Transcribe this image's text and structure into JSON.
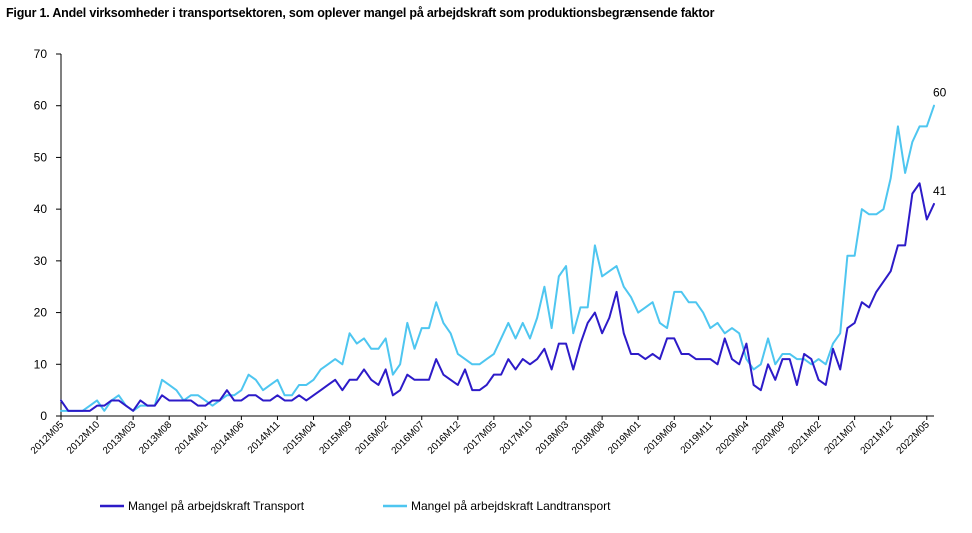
{
  "chart_data": {
    "type": "line",
    "title": "Figur 1. Andel virksomheder i transportsektoren, som oplever mangel på arbejdskraft som produktionsbegrænsende faktor",
    "xlabel": "",
    "ylabel": "",
    "ylim": [
      0,
      70
    ],
    "yticks": [
      0,
      10,
      20,
      30,
      40,
      50,
      60,
      70
    ],
    "grid": false,
    "legend_position": "bottom",
    "x_tick_labels": [
      "2012M05",
      "2012M10",
      "2013M03",
      "2013M08",
      "2014M01",
      "2014M06",
      "2014M11",
      "2015M04",
      "2015M09",
      "2016M02",
      "2016M07",
      "2016M12",
      "2017M05",
      "2017M10",
      "2018M03",
      "2018M08",
      "2019M01",
      "2019M06",
      "2019M11",
      "2020M04",
      "2020M09",
      "2021M02",
      "2021M07",
      "2021M12",
      "2022M05"
    ],
    "series": [
      {
        "name": "Mangel på arbejdskraft Transport",
        "color": "#2d1bc8",
        "end_label": "41",
        "values": [
          3,
          1,
          1,
          1,
          1,
          2,
          2,
          3,
          3,
          2,
          1,
          3,
          2,
          2,
          4,
          3,
          3,
          3,
          3,
          2,
          2,
          3,
          3,
          5,
          3,
          3,
          4,
          4,
          3,
          3,
          4,
          3,
          3,
          4,
          3,
          4,
          5,
          6,
          7,
          5,
          7,
          7,
          9,
          7,
          6,
          9,
          4,
          5,
          8,
          7,
          7,
          7,
          11,
          8,
          7,
          6,
          9,
          5,
          5,
          6,
          8,
          8,
          11,
          9,
          11,
          10,
          11,
          13,
          9,
          14,
          14,
          9,
          14,
          18,
          20,
          16,
          19,
          24,
          16,
          12,
          12,
          11,
          12,
          11,
          15,
          15,
          12,
          12,
          11,
          11,
          11,
          10,
          15,
          11,
          10,
          14,
          6,
          5,
          10,
          7,
          11,
          11,
          6,
          12,
          11,
          7,
          6,
          13,
          9,
          17,
          18,
          22,
          21,
          24,
          26,
          28,
          33,
          33,
          43,
          45,
          38,
          41
        ]
      },
      {
        "name": "Mangel på arbejdskraft Landtransport",
        "color": "#4ec6f0",
        "end_label": "60",
        "values": [
          1,
          1,
          1,
          1,
          2,
          3,
          1,
          3,
          4,
          2,
          1,
          2,
          2,
          2,
          7,
          6,
          5,
          3,
          4,
          4,
          3,
          2,
          3,
          4,
          4,
          5,
          8,
          7,
          5,
          6,
          7,
          4,
          4,
          6,
          6,
          7,
          9,
          10,
          11,
          10,
          16,
          14,
          15,
          13,
          13,
          15,
          8,
          10,
          18,
          13,
          17,
          17,
          22,
          18,
          16,
          12,
          11,
          10,
          10,
          11,
          12,
          15,
          18,
          15,
          18,
          15,
          19,
          25,
          17,
          27,
          29,
          16,
          21,
          21,
          33,
          27,
          28,
          29,
          25,
          23,
          20,
          21,
          22,
          18,
          17,
          24,
          24,
          22,
          22,
          20,
          17,
          18,
          16,
          17,
          16,
          11,
          9,
          10,
          15,
          10,
          12,
          12,
          11,
          11,
          10,
          11,
          10,
          14,
          16,
          31,
          31,
          40,
          39,
          39,
          40,
          46,
          56,
          47,
          53,
          56,
          56,
          60
        ]
      }
    ]
  }
}
